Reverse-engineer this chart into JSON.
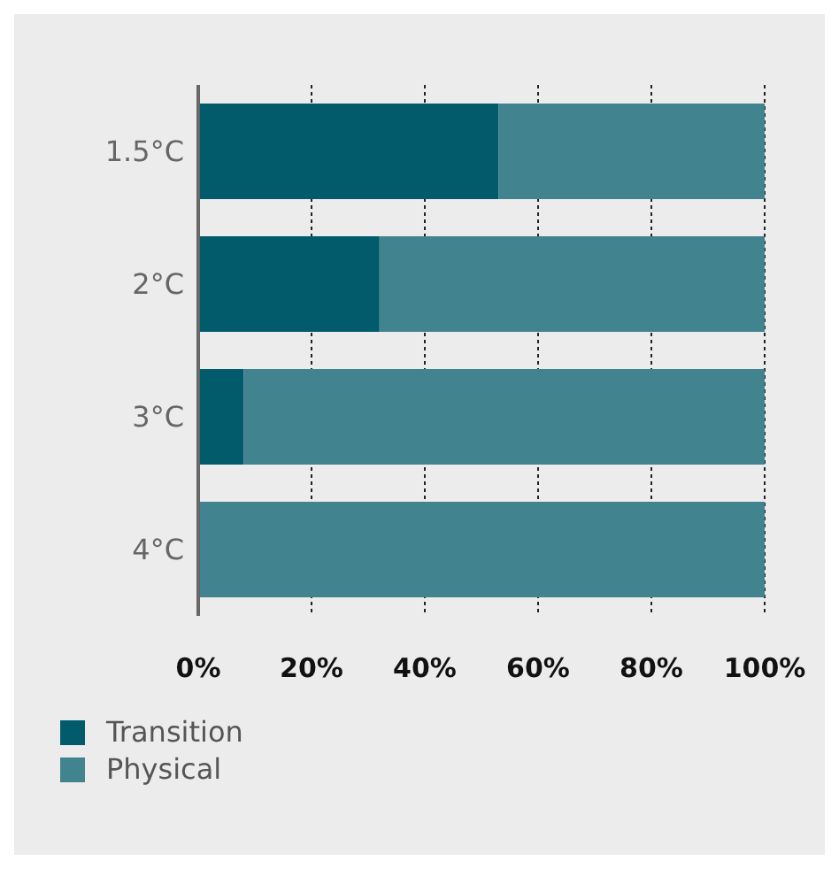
{
  "chart_data": {
    "type": "bar",
    "orientation": "horizontal",
    "stacked": true,
    "categories": [
      "1.5°C",
      "2°C",
      "3°C",
      "4°C"
    ],
    "series": [
      {
        "name": "Transition",
        "color": "#025b6b",
        "values": [
          53,
          32,
          8,
          0
        ]
      },
      {
        "name": "Physical",
        "color": "#41838f",
        "values": [
          47,
          68,
          92,
          100
        ]
      }
    ],
    "xlim": [
      0,
      100
    ],
    "xticks": [
      {
        "value": 0,
        "label": "0%"
      },
      {
        "value": 20,
        "label": "20%"
      },
      {
        "value": 40,
        "label": "40%"
      },
      {
        "value": 60,
        "label": "60%"
      },
      {
        "value": 80,
        "label": "80%"
      },
      {
        "value": 100,
        "label": "100%"
      }
    ],
    "grid": "x",
    "legend": "bottom left"
  }
}
